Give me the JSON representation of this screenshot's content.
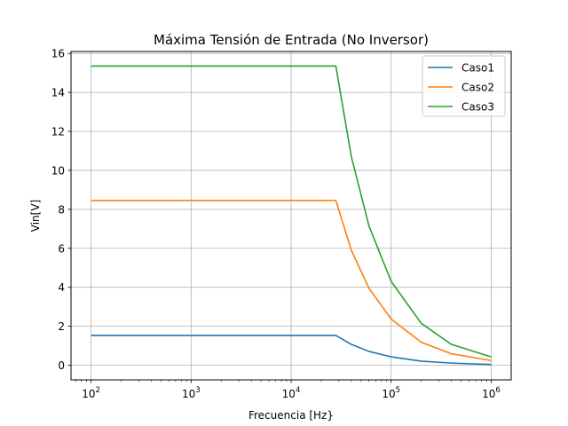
{
  "chart_data": {
    "type": "line",
    "title": "Máxima Tensión de Entrada (No Inversor)",
    "xlabel": "Frecuencia [Hz}",
    "ylabel": "Vin[V]",
    "x_scale": "log",
    "xlim": [
      63,
      1585000
    ],
    "ylim": [
      -0.75,
      16.1
    ],
    "grid": true,
    "legend_position": "top-right",
    "x_ticks": [
      {
        "base": "10",
        "exp": "2",
        "value": 100
      },
      {
        "base": "10",
        "exp": "3",
        "value": 1000
      },
      {
        "base": "10",
        "exp": "4",
        "value": 10000
      },
      {
        "base": "10",
        "exp": "5",
        "value": 100000
      },
      {
        "base": "10",
        "exp": "6",
        "value": 1000000
      }
    ],
    "y_ticks": [
      "0",
      "2",
      "4",
      "6",
      "8",
      "10",
      "12",
      "14",
      "16"
    ],
    "series": [
      {
        "name": "Caso1",
        "color": "#1f77b4",
        "x": [
          100,
          1000,
          10000,
          28000,
          40000,
          60000,
          100000,
          200000,
          400000,
          1000000
        ],
        "values": [
          1.53,
          1.53,
          1.53,
          1.53,
          1.07,
          0.71,
          0.43,
          0.21,
          0.11,
          0.04
        ]
      },
      {
        "name": "Caso2",
        "color": "#ff7f0e",
        "x": [
          100,
          1000,
          10000,
          28000,
          40000,
          60000,
          100000,
          200000,
          400000,
          1000000
        ],
        "values": [
          8.45,
          8.45,
          8.45,
          8.45,
          5.9,
          3.95,
          2.37,
          1.18,
          0.59,
          0.24
        ]
      },
      {
        "name": "Caso3",
        "color": "#2ca02c",
        "x": [
          100,
          1000,
          10000,
          28000,
          40000,
          60000,
          100000,
          200000,
          400000,
          1000000
        ],
        "values": [
          15.35,
          15.35,
          15.35,
          15.35,
          10.7,
          7.15,
          4.3,
          2.15,
          1.07,
          0.43
        ]
      }
    ]
  }
}
